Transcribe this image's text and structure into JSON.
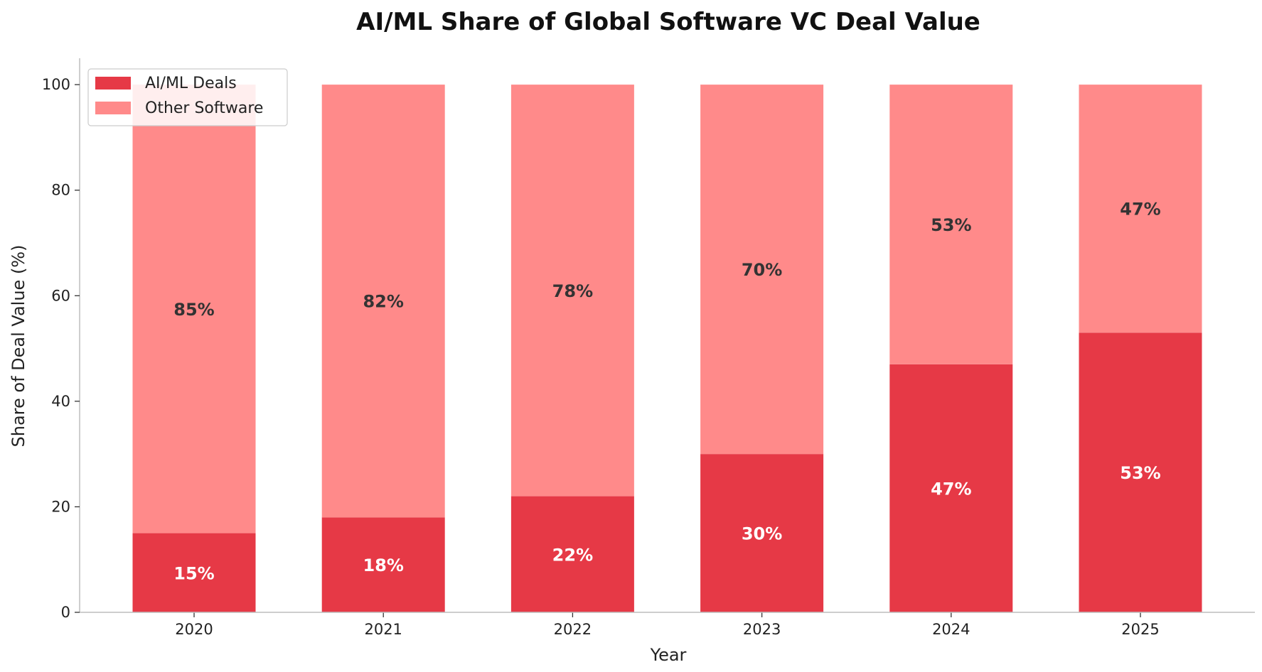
{
  "chart_data": {
    "type": "bar",
    "stacked": true,
    "title": "AI/ML Share of Global Software VC Deal Value",
    "xlabel": "Year",
    "ylabel": "Share of Deal Value (%)",
    "ylim": [
      0,
      105
    ],
    "yticks": [
      0,
      20,
      40,
      60,
      80,
      100
    ],
    "categories": [
      "2020",
      "2021",
      "2022",
      "2023",
      "2024",
      "2025"
    ],
    "series": [
      {
        "name": "AI/ML Deals",
        "values": [
          15,
          18,
          22,
          30,
          47,
          53
        ],
        "color": "#e63946",
        "label_color": "#ffffff",
        "labels": [
          "15%",
          "18%",
          "22%",
          "30%",
          "47%",
          "53%"
        ]
      },
      {
        "name": "Other Software",
        "values": [
          85,
          82,
          78,
          70,
          53,
          47
        ],
        "color": "#ff8a8a",
        "label_color": "#333333",
        "labels": [
          "85%",
          "82%",
          "78%",
          "70%",
          "53%",
          "47%"
        ]
      }
    ],
    "grid": false,
    "legend": "top-left"
  }
}
